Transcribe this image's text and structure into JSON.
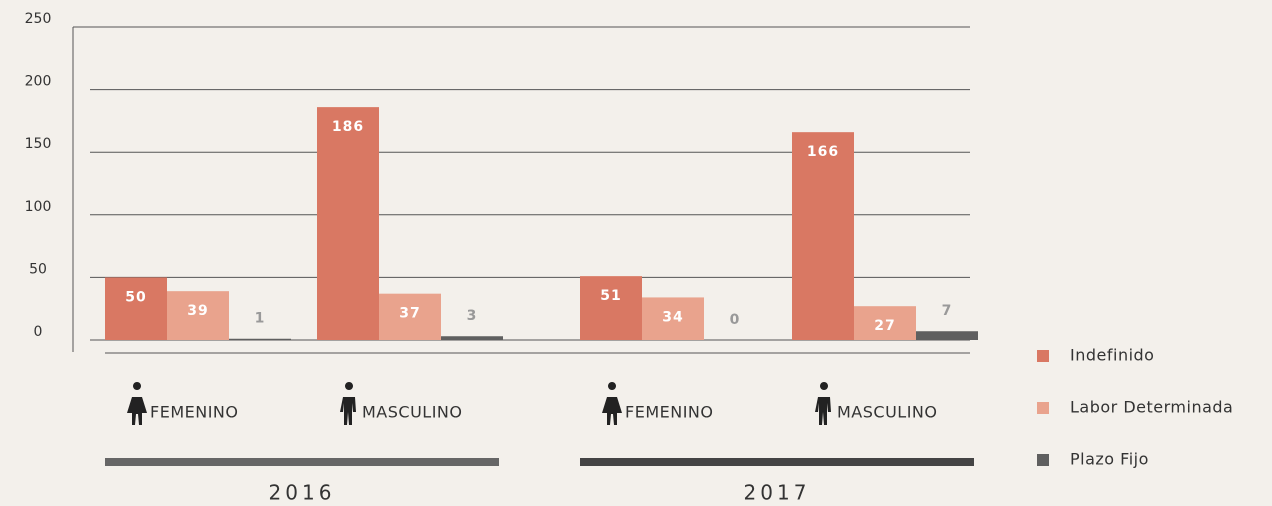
{
  "chart_data": {
    "type": "bar",
    "categories": [
      "FEMENINO",
      "MASCULINO",
      "FEMENINO",
      "MASCULINO"
    ],
    "groups": [
      {
        "label": "2016",
        "color": "#666666"
      },
      {
        "label": "2017",
        "color": "#444444"
      }
    ],
    "series": [
      {
        "name": "Indefinido",
        "color": "#d97863",
        "values": [
          50,
          186,
          51,
          166
        ]
      },
      {
        "name": "Labor Determinada",
        "color": "#e9a38d",
        "values": [
          39,
          37,
          34,
          27
        ]
      },
      {
        "name": "Plazo Fijo",
        "color": "#5f5f5f",
        "values": [
          1,
          3,
          0,
          7
        ]
      }
    ],
    "ylim": [
      0,
      250
    ],
    "yticks": [
      0,
      50,
      100,
      150,
      200,
      250
    ],
    "grid": true,
    "legend": "right"
  }
}
